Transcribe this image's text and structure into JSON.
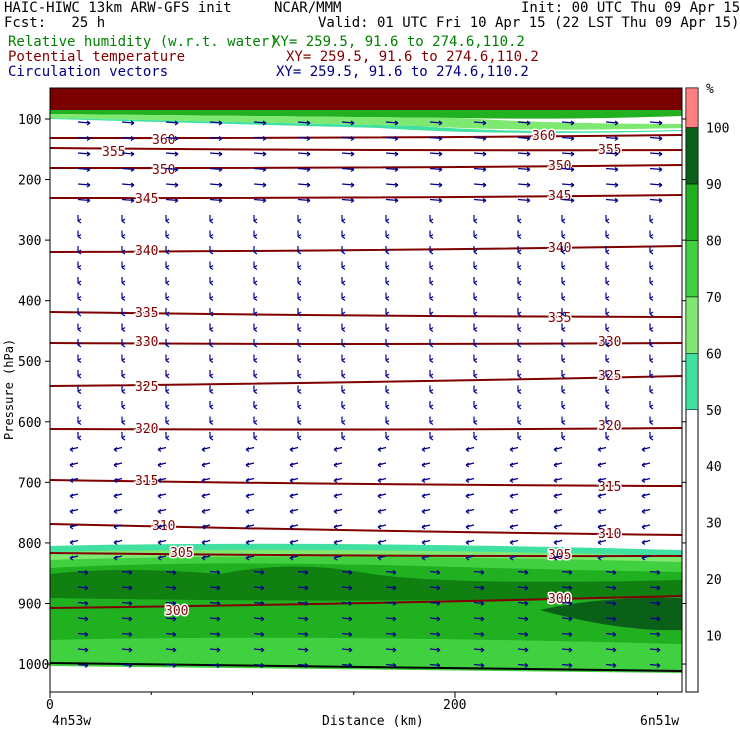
{
  "header": {
    "line1_left": "HAIC-HIWC 13km ARW-GFS init",
    "line1_mid": "NCAR/MMM",
    "line1_right": "Init: 00 UTC Thu 09 Apr 15",
    "line2_left": "Fcst:   25 h",
    "line2_right": "Valid: 01 UTC Fri 10 Apr 15 (22 LST Thu 09 Apr 15)",
    "rh_label": "Relative humidity (w.r.t. water)",
    "rh_xy": "XY= 259.5, 91.6 to 274.6,110.2",
    "theta_label": "Potential temperature",
    "theta_xy": "XY= 259.5, 91.6 to 274.6,110.2",
    "vec_label": "Circulation vectors",
    "vec_xy": "XY= 259.5, 91.6 to 274.6,110.2"
  },
  "colors": {
    "rh_label": "#008000",
    "theta_label": "#800000",
    "vec_label": "#000080",
    "contour": "#800000",
    "vector": "#00008b",
    "rh_fill": [
      "#ffffff",
      "#40e0a0",
      "#7fe870",
      "#40d040",
      "#20b020",
      "#108010",
      "#0a6018",
      "#ff8080",
      "#7a0000"
    ]
  },
  "chart_data": {
    "type": "cross-section",
    "xlabel": "Distance (km)",
    "ylabel": "Pressure (hPa)",
    "x_ticks": [
      0,
      200
    ],
    "x_left_label": "4n53w",
    "x_right_label": "6n51w",
    "y_ticks": [
      100,
      200,
      300,
      400,
      500,
      600,
      700,
      800,
      900,
      1000
    ],
    "colorbar": {
      "unit": "%",
      "ticks": [
        10,
        20,
        30,
        40,
        50,
        60,
        70,
        80,
        90,
        100
      ],
      "levels": [
        50,
        60,
        70,
        80,
        90,
        100
      ]
    },
    "theta_contours": [
      {
        "value": 300,
        "labels": [
          "300",
          "300"
        ]
      },
      {
        "value": 305,
        "labels": [
          "305",
          "305"
        ]
      },
      {
        "value": 310,
        "labels": [
          "310",
          "310"
        ]
      },
      {
        "value": 315,
        "labels": [
          "315",
          "315"
        ]
      },
      {
        "value": 320,
        "labels": [
          "320",
          "320"
        ]
      },
      {
        "value": 325,
        "labels": [
          "325",
          "325"
        ]
      },
      {
        "value": 330,
        "labels": [
          "330",
          "330"
        ]
      },
      {
        "value": 335,
        "labels": [
          "335",
          "335"
        ]
      },
      {
        "value": 340,
        "labels": [
          "340",
          "340"
        ]
      },
      {
        "value": 345,
        "labels": [
          "345",
          "345"
        ]
      },
      {
        "value": 350,
        "labels": [
          "350",
          "350"
        ]
      },
      {
        "value": 355,
        "labels": [
          "355",
          "355"
        ]
      },
      {
        "value": 360,
        "labels": [
          "360",
          "360"
        ]
      }
    ]
  }
}
